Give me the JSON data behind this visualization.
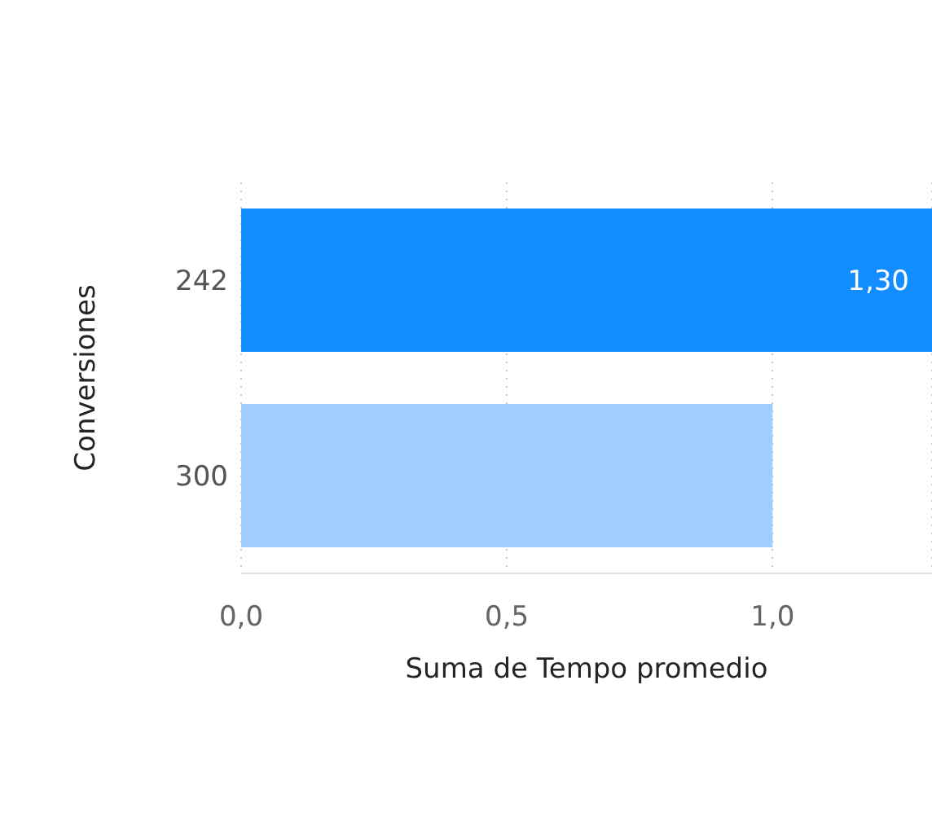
{
  "chart_data": {
    "type": "bar",
    "orientation": "horizontal",
    "xlabel": "Suma de Tempo promedio",
    "ylabel": "Conversiones",
    "categories": [
      "242",
      "300"
    ],
    "values": [
      1.3,
      1.0
    ],
    "colors": [
      "#118dff",
      "#9fcdfd"
    ],
    "value_labels": [
      "1,30",
      null
    ],
    "xlim": [
      0,
      1.3
    ],
    "xticks": [
      {
        "value": 0,
        "label": "0,0"
      },
      {
        "value": 0.5,
        "label": "0,5"
      },
      {
        "value": 1,
        "label": "1,0"
      }
    ],
    "grid": "x"
  }
}
